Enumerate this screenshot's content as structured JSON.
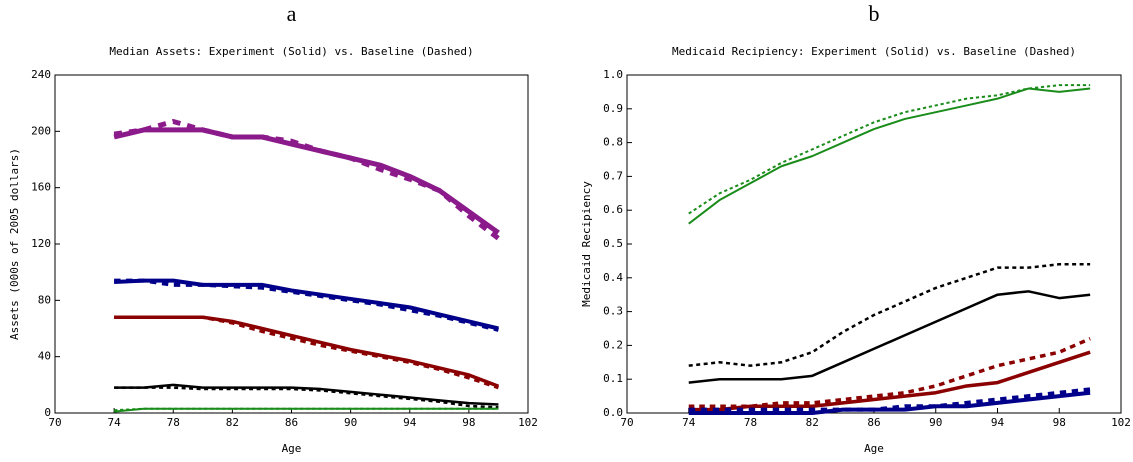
{
  "chart_data": [
    {
      "type": "line",
      "panel_label": "a",
      "title": "Median Assets:  Experiment (Solid) vs. Baseline (Dashed)",
      "x_label": "Age",
      "y_label": "Assets (000s of 2005 dollars)",
      "xlim": [
        70,
        102
      ],
      "xticks": [
        70,
        74,
        78,
        82,
        86,
        90,
        94,
        98,
        102
      ],
      "ylim": [
        0,
        240
      ],
      "yticks": [
        0,
        40,
        80,
        120,
        160,
        200,
        240
      ],
      "x": [
        74,
        76,
        78,
        80,
        82,
        84,
        86,
        88,
        90,
        92,
        94,
        96,
        98,
        100
      ],
      "series": [
        {
          "color": "#8b1a8b",
          "dashed": false,
          "width": 5,
          "values": [
            196,
            201,
            201,
            201,
            196,
            196,
            191,
            186,
            181,
            176,
            168,
            158,
            143,
            128
          ]
        },
        {
          "color": "#8b1a8b",
          "dashed": true,
          "width": 5,
          "values": [
            198,
            201,
            207,
            201,
            196,
            196,
            193,
            186,
            181,
            173,
            166,
            158,
            140,
            124
          ]
        },
        {
          "color": "#00008b",
          "dashed": false,
          "width": 4,
          "values": [
            93,
            94,
            94,
            91,
            91,
            91,
            87,
            84,
            81,
            78,
            75,
            70,
            65,
            60
          ]
        },
        {
          "color": "#00008b",
          "dashed": true,
          "width": 4,
          "values": [
            94,
            94,
            91,
            91,
            90,
            89,
            86,
            83,
            80,
            77,
            73,
            69,
            64,
            59
          ]
        },
        {
          "color": "#8b0000",
          "dashed": false,
          "width": 3.5,
          "values": [
            68,
            68,
            68,
            68,
            65,
            60,
            55,
            50,
            45,
            41,
            37,
            32,
            27,
            19
          ]
        },
        {
          "color": "#8b0000",
          "dashed": true,
          "width": 3.5,
          "values": [
            68,
            68,
            68,
            68,
            64,
            58,
            53,
            48,
            44,
            40,
            36,
            31,
            25,
            18
          ]
        },
        {
          "color": "#000000",
          "dashed": false,
          "width": 2.5,
          "values": [
            18,
            18,
            20,
            18,
            18,
            18,
            18,
            17,
            15,
            13,
            11,
            9,
            7,
            6
          ]
        },
        {
          "color": "#000000",
          "dashed": true,
          "width": 2.5,
          "values": [
            18,
            18,
            18,
            17,
            17,
            17,
            17,
            16,
            14,
            12,
            10,
            8,
            5,
            4
          ]
        },
        {
          "color": "#1a8c1a",
          "dashed": false,
          "width": 2,
          "values": [
            1,
            3,
            3,
            3,
            3,
            3,
            3,
            3,
            3,
            3,
            3,
            3,
            3,
            3
          ]
        },
        {
          "color": "#1a8c1a",
          "dashed": true,
          "width": 2,
          "values": [
            2,
            3,
            3,
            3,
            3,
            3,
            3,
            3,
            3,
            3,
            3,
            3,
            3,
            3
          ]
        }
      ]
    },
    {
      "type": "line",
      "panel_label": "b",
      "title": "Medicaid Recipiency:  Experiment (Solid) vs. Baseline (Dashed)",
      "x_label": "Age",
      "y_label": "Medicaid Recipiency",
      "xlim": [
        70,
        102
      ],
      "xticks": [
        70,
        74,
        78,
        82,
        86,
        90,
        94,
        98,
        102
      ],
      "ylim": [
        0,
        1
      ],
      "yticks": [
        {
          "value": 0,
          "label": "0.0"
        },
        0.1,
        0.2,
        0.3,
        0.4,
        0.5,
        0.6,
        0.7,
        0.8,
        0.9,
        {
          "value": 1,
          "label": "1.0"
        }
      ],
      "x": [
        74,
        76,
        78,
        80,
        82,
        84,
        86,
        88,
        90,
        92,
        94,
        96,
        98,
        100
      ],
      "series": [
        {
          "color": "#1a8c1a",
          "dashed": false,
          "width": 2,
          "values": [
            0.56,
            0.63,
            0.68,
            0.73,
            0.76,
            0.8,
            0.84,
            0.87,
            0.89,
            0.91,
            0.93,
            0.96,
            0.95,
            0.96
          ]
        },
        {
          "color": "#1a8c1a",
          "dashed": true,
          "width": 2,
          "values": [
            0.59,
            0.65,
            0.69,
            0.74,
            0.78,
            0.82,
            0.86,
            0.89,
            0.91,
            0.93,
            0.94,
            0.96,
            0.97,
            0.97
          ]
        },
        {
          "color": "#000000",
          "dashed": false,
          "width": 2.5,
          "values": [
            0.09,
            0.1,
            0.1,
            0.1,
            0.11,
            0.15,
            0.19,
            0.23,
            0.27,
            0.31,
            0.35,
            0.36,
            0.34,
            0.35
          ]
        },
        {
          "color": "#000000",
          "dashed": true,
          "width": 2.5,
          "values": [
            0.14,
            0.15,
            0.14,
            0.15,
            0.18,
            0.24,
            0.29,
            0.33,
            0.37,
            0.4,
            0.43,
            0.43,
            0.44,
            0.44
          ]
        },
        {
          "color": "#8b0000",
          "dashed": false,
          "width": 3.5,
          "values": [
            0.01,
            0.01,
            0.02,
            0.02,
            0.02,
            0.03,
            0.04,
            0.05,
            0.06,
            0.08,
            0.09,
            0.12,
            0.15,
            0.18
          ]
        },
        {
          "color": "#8b0000",
          "dashed": true,
          "width": 3.5,
          "values": [
            0.02,
            0.02,
            0.02,
            0.03,
            0.03,
            0.04,
            0.05,
            0.06,
            0.08,
            0.11,
            0.14,
            0.16,
            0.18,
            0.22
          ]
        },
        {
          "color": "#00008b",
          "dashed": false,
          "width": 4,
          "values": [
            0,
            0,
            0,
            0,
            0,
            0.01,
            0.01,
            0.01,
            0.02,
            0.02,
            0.03,
            0.04,
            0.05,
            0.06
          ]
        },
        {
          "color": "#00008b",
          "dashed": true,
          "width": 4,
          "values": [
            0.01,
            0.01,
            0.01,
            0.01,
            0.01,
            0.01,
            0.01,
            0.02,
            0.02,
            0.03,
            0.04,
            0.05,
            0.06,
            0.07
          ]
        }
      ]
    }
  ]
}
